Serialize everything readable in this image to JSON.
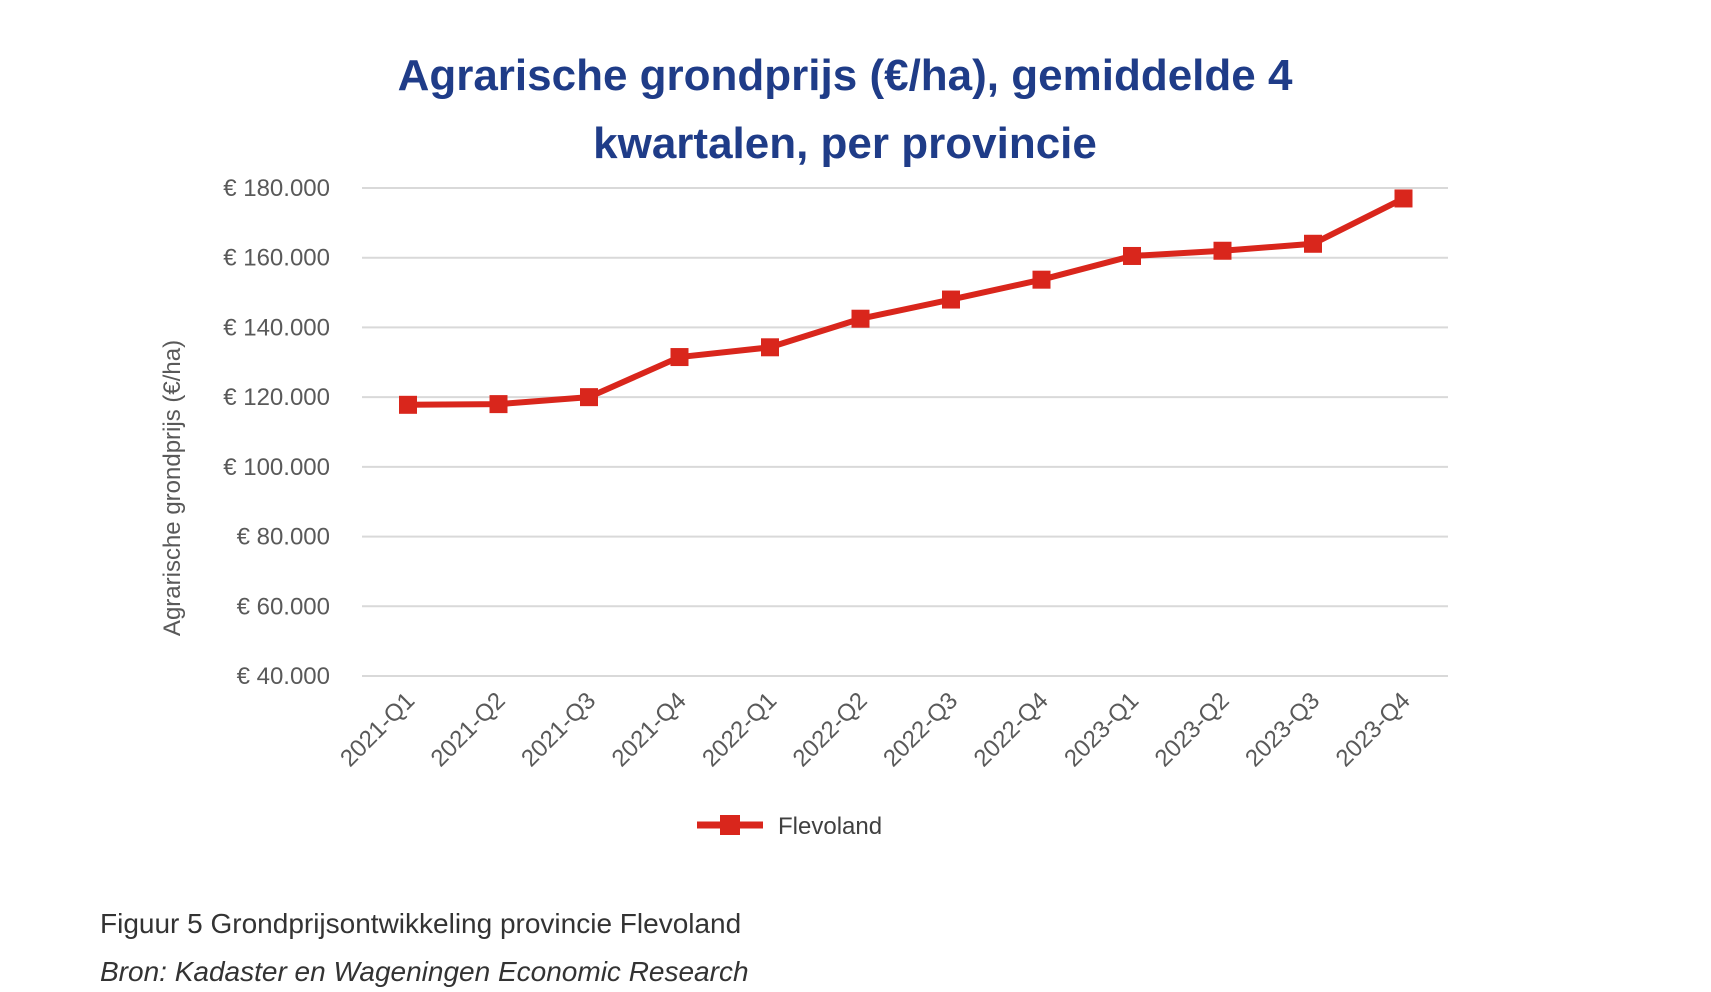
{
  "chart_data": {
    "type": "line",
    "title_lines": [
      "Agrarische grondprijs (€/ha), gemiddelde 4",
      "kwartalen, per provincie"
    ],
    "ylabel": "Agrarische grondprijs (€/ha)",
    "xlabel": "",
    "ylim": [
      40000,
      180000
    ],
    "yticks": [
      40000,
      60000,
      80000,
      100000,
      120000,
      140000,
      160000,
      180000
    ],
    "ytick_labels": [
      "€ 40.000",
      "€ 60.000",
      "€ 80.000",
      "€ 100.000",
      "€ 120.000",
      "€ 140.000",
      "€ 160.000",
      "€ 180.000"
    ],
    "categories": [
      "2021-Q1",
      "2021-Q2",
      "2021-Q3",
      "2021-Q4",
      "2022-Q1",
      "2022-Q2",
      "2022-Q3",
      "2022-Q4",
      "2023-Q1",
      "2023-Q2",
      "2023-Q3",
      "2023-Q4"
    ],
    "series": [
      {
        "name": "Flevoland",
        "color": "#d9261c",
        "marker": "square",
        "values": [
          117800,
          118000,
          120000,
          131500,
          134300,
          142500,
          148000,
          153700,
          160500,
          162000,
          164000,
          177000
        ]
      }
    ],
    "grid": true,
    "legend_position": "bottom"
  },
  "caption": {
    "figure": "Figuur 5 Grondprijsontwikkeling provincie Flevoland",
    "source": "Bron: Kadaster en Wageningen Economic Research"
  },
  "colors": {
    "title": "#1f3c88",
    "grid": "#d9d9d9",
    "tick_text": "#595959"
  }
}
